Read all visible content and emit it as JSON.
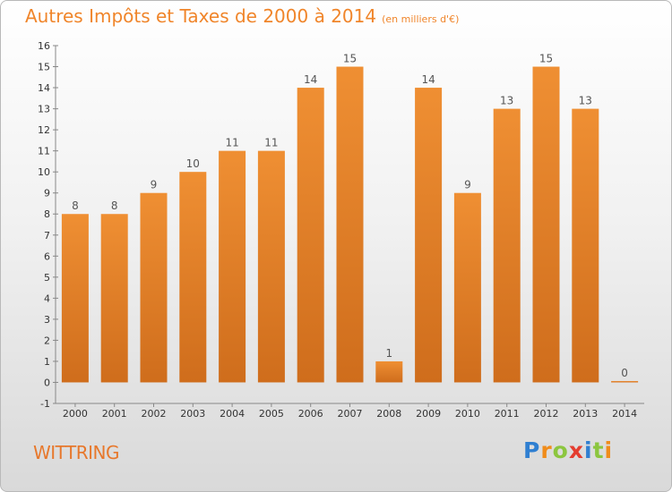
{
  "header": {
    "title": "Autres Impôts et Taxes de 2000 à 2014",
    "unit": "(en milliers d'€)"
  },
  "commune": "WITTRING",
  "logo": {
    "letters": [
      "P",
      "r",
      "o",
      "x",
      "i",
      "t",
      "i"
    ],
    "colors": [
      "#2f7fd1",
      "#f08c1a",
      "#8cc63f",
      "#e43d2f",
      "#2f7fd1",
      "#8cc63f",
      "#f08c1a"
    ]
  },
  "colors": {
    "bar": "#ef8f33",
    "bar_dark": "#cf6d1c",
    "accent": "#f0852a"
  },
  "chart_data": {
    "type": "bar",
    "title": "Autres Impôts et Taxes de 2000 à 2014",
    "subtitle": "(en milliers d'€)",
    "categories": [
      "2000",
      "2001",
      "2002",
      "2003",
      "2004",
      "2005",
      "2006",
      "2007",
      "2008",
      "2009",
      "2010",
      "2011",
      "2012",
      "2013",
      "2014"
    ],
    "values": [
      8,
      8,
      9,
      10,
      11,
      11,
      14,
      15,
      1,
      14,
      9,
      13,
      15,
      13,
      0
    ],
    "ylim": [
      -1,
      16
    ],
    "yticks": [
      -1,
      0,
      1,
      2,
      3,
      4,
      5,
      6,
      7,
      8,
      9,
      10,
      11,
      12,
      13,
      14,
      15,
      16
    ],
    "grid": false,
    "xlabel": "",
    "ylabel": ""
  }
}
